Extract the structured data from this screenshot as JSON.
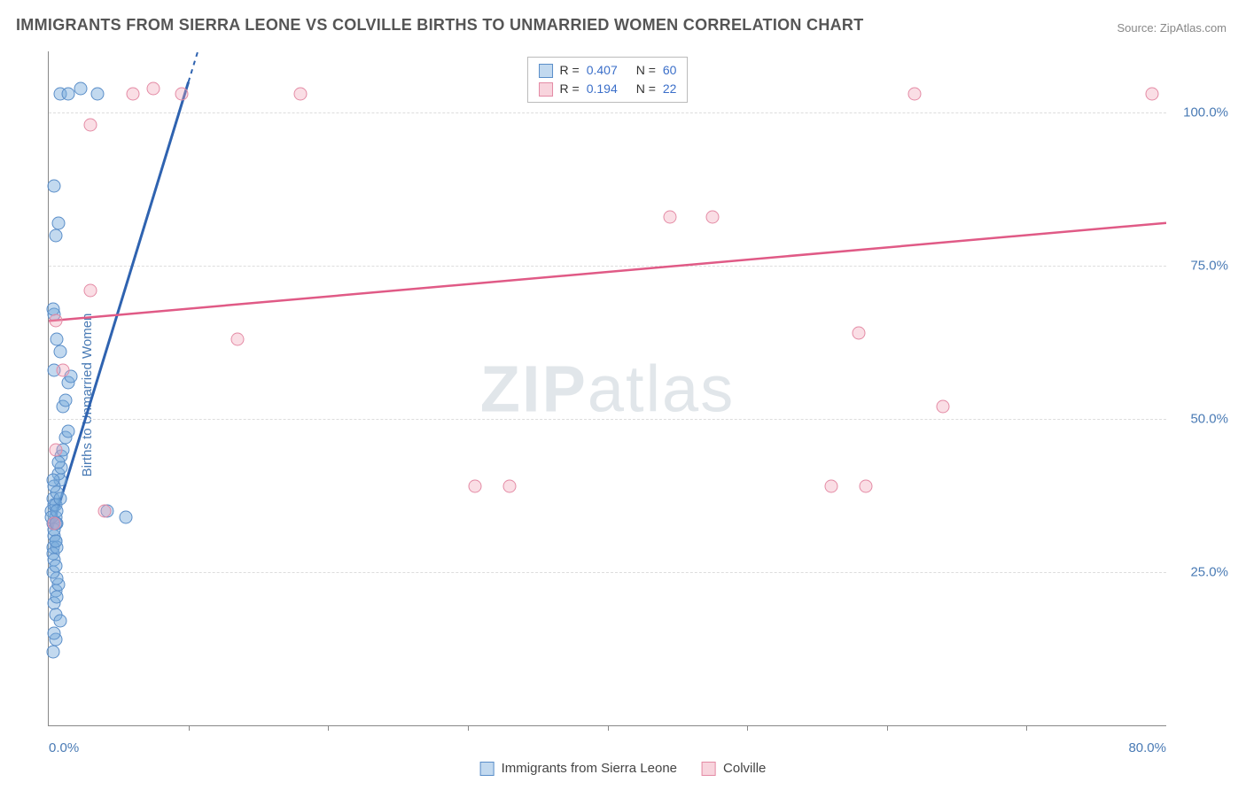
{
  "title": "IMMIGRANTS FROM SIERRA LEONE VS COLVILLE BIRTHS TO UNMARRIED WOMEN CORRELATION CHART",
  "source": "Source: ZipAtlas.com",
  "y_axis_label": "Births to Unmarried Women",
  "watermark": {
    "bold": "ZIP",
    "rest": "atlas"
  },
  "chart": {
    "type": "scatter",
    "xlim": [
      0,
      80
    ],
    "ylim": [
      0,
      110
    ],
    "x_ticks": [
      0,
      10,
      20,
      30,
      40,
      50,
      60,
      70,
      80
    ],
    "x_tick_labels": {
      "0": "0.0%",
      "80": "80.0%"
    },
    "y_ticks": [
      25,
      50,
      75,
      100
    ],
    "y_tick_labels": {
      "25": "25.0%",
      "50": "50.0%",
      "75": "75.0%",
      "100": "100.0%"
    },
    "grid_color": "#dddddd",
    "background_color": "#ffffff",
    "axis_color": "#888888",
    "text_color": "#4a7bb5",
    "marker_radius": 7.5,
    "series": [
      {
        "name": "Immigrants from Sierra Leone",
        "color_fill": "rgba(120,170,220,0.45)",
        "color_stroke": "#5a8ec9",
        "marker_class": "blue",
        "R": "0.407",
        "N": "60",
        "trend": {
          "x1": 0.2,
          "y1": 32,
          "x2": 10,
          "y2": 105,
          "stroke": "#2f63b0",
          "width": 3,
          "extend_dashed_to_y": 110
        },
        "points": [
          [
            0.3,
            33
          ],
          [
            0.2,
            35
          ],
          [
            0.4,
            36
          ],
          [
            0.5,
            34
          ],
          [
            0.3,
            37
          ],
          [
            0.6,
            38
          ],
          [
            0.4,
            31
          ],
          [
            0.8,
            40
          ],
          [
            0.5,
            30
          ],
          [
            0.3,
            29
          ],
          [
            0.7,
            41
          ],
          [
            0.9,
            42
          ],
          [
            0.4,
            32
          ],
          [
            0.6,
            33
          ],
          [
            0.2,
            34
          ],
          [
            0.5,
            36
          ],
          [
            0.8,
            37
          ],
          [
            0.4,
            39
          ],
          [
            0.3,
            40
          ],
          [
            0.6,
            35
          ],
          [
            0.5,
            33
          ],
          [
            0.9,
            44
          ],
          [
            1.0,
            45
          ],
          [
            1.2,
            47
          ],
          [
            1.4,
            48
          ],
          [
            0.5,
            22
          ],
          [
            0.7,
            23
          ],
          [
            0.4,
            20
          ],
          [
            0.6,
            21
          ],
          [
            0.5,
            18
          ],
          [
            0.8,
            17
          ],
          [
            0.3,
            28
          ],
          [
            0.4,
            27
          ],
          [
            0.6,
            29
          ],
          [
            0.5,
            30
          ],
          [
            5.5,
            34
          ],
          [
            4.2,
            35
          ],
          [
            1.0,
            52
          ],
          [
            1.2,
            53
          ],
          [
            1.4,
            56
          ],
          [
            1.6,
            57
          ],
          [
            0.4,
            58
          ],
          [
            0.8,
            61
          ],
          [
            0.6,
            63
          ],
          [
            0.4,
            67
          ],
          [
            0.3,
            68
          ],
          [
            0.5,
            80
          ],
          [
            0.7,
            82
          ],
          [
            0.4,
            88
          ],
          [
            0.8,
            103
          ],
          [
            1.4,
            103
          ],
          [
            2.3,
            104
          ],
          [
            3.5,
            103
          ],
          [
            0.3,
            12
          ],
          [
            0.5,
            14
          ],
          [
            0.4,
            15
          ],
          [
            0.6,
            24
          ],
          [
            0.3,
            25
          ],
          [
            0.5,
            26
          ],
          [
            0.7,
            43
          ]
        ]
      },
      {
        "name": "Colville",
        "color_fill": "rgba(240,160,180,0.35)",
        "color_stroke": "#e48ba5",
        "marker_class": "pink",
        "R": "0.194",
        "N": "22",
        "trend": {
          "x1": 0,
          "y1": 66,
          "x2": 80,
          "y2": 82,
          "stroke": "#e05a86",
          "width": 2.5
        },
        "points": [
          [
            3.0,
            98
          ],
          [
            6.0,
            103
          ],
          [
            7.5,
            104
          ],
          [
            9.5,
            103
          ],
          [
            18.0,
            103
          ],
          [
            62.0,
            103
          ],
          [
            79.0,
            103
          ],
          [
            44.5,
            83
          ],
          [
            47.5,
            83
          ],
          [
            58.0,
            64
          ],
          [
            64.0,
            52
          ],
          [
            56.0,
            39
          ],
          [
            58.5,
            39
          ],
          [
            30.5,
            39
          ],
          [
            33.0,
            39
          ],
          [
            13.5,
            63
          ],
          [
            3.0,
            71
          ],
          [
            0.5,
            66
          ],
          [
            1.0,
            58
          ],
          [
            0.5,
            45
          ],
          [
            4.0,
            35
          ],
          [
            0.4,
            33
          ]
        ]
      }
    ]
  },
  "legend_top": {
    "rows": [
      {
        "swatch": "blue",
        "r_label": "R =",
        "r": "0.407",
        "n_label": "N =",
        "n": "60"
      },
      {
        "swatch": "pink",
        "r_label": "R =",
        "r": "0.194",
        "n_label": "N =",
        "n": "22"
      }
    ]
  },
  "legend_bottom": [
    {
      "swatch": "blue",
      "label": "Immigrants from Sierra Leone"
    },
    {
      "swatch": "pink",
      "label": "Colville"
    }
  ]
}
